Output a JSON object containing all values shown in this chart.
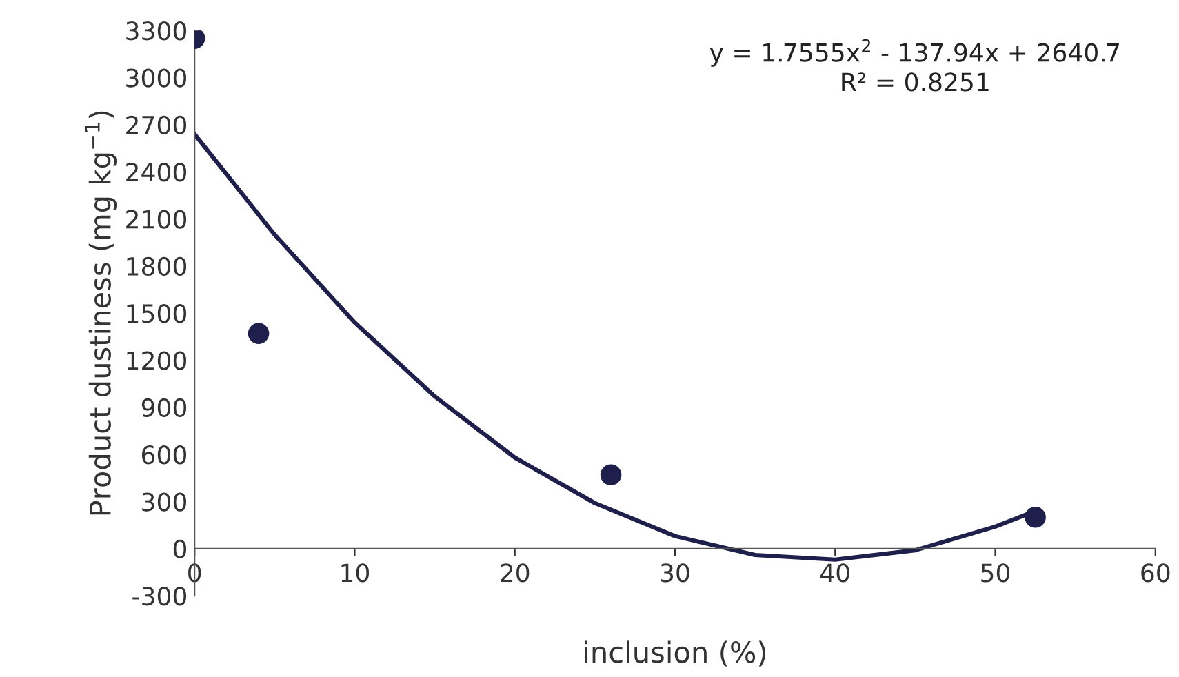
{
  "chart_data": {
    "type": "scatter",
    "xlabel": "inclusion (%)",
    "ylabel": "Product dustiness (mg kg$^{−1}$)",
    "xlim": [
      0,
      60
    ],
    "xticks": [
      0,
      10,
      20,
      30,
      40,
      50,
      60
    ],
    "ylim": [
      -300,
      3300
    ],
    "yticks": [
      -300,
      0,
      300,
      600,
      900,
      1200,
      1500,
      1800,
      2100,
      2400,
      2700,
      3000,
      3300
    ],
    "grid": false,
    "marker": "circle",
    "annotations": [
      "y = 1.7555x$^{2}$ - 137.94x + 2640.7",
      "R² = 0.8251"
    ],
    "series": [
      {
        "color": "#1e1f4b",
        "x": [
          0,
          4,
          26,
          52.5
        ],
        "values": [
          3250,
          1370,
          470,
          200
        ]
      },
      {
        "type": "line",
        "color": "#1e1f4b",
        "marker": "none",
        "line_style": "solid",
        "x": [
          0,
          5,
          10,
          15,
          20,
          25,
          30,
          35,
          40,
          45,
          50,
          52.5
        ],
        "values": [
          2640,
          2000,
          1440,
          970,
          580,
          290,
          80,
          -40,
          -70,
          -10,
          140,
          240
        ]
      }
    ]
  }
}
